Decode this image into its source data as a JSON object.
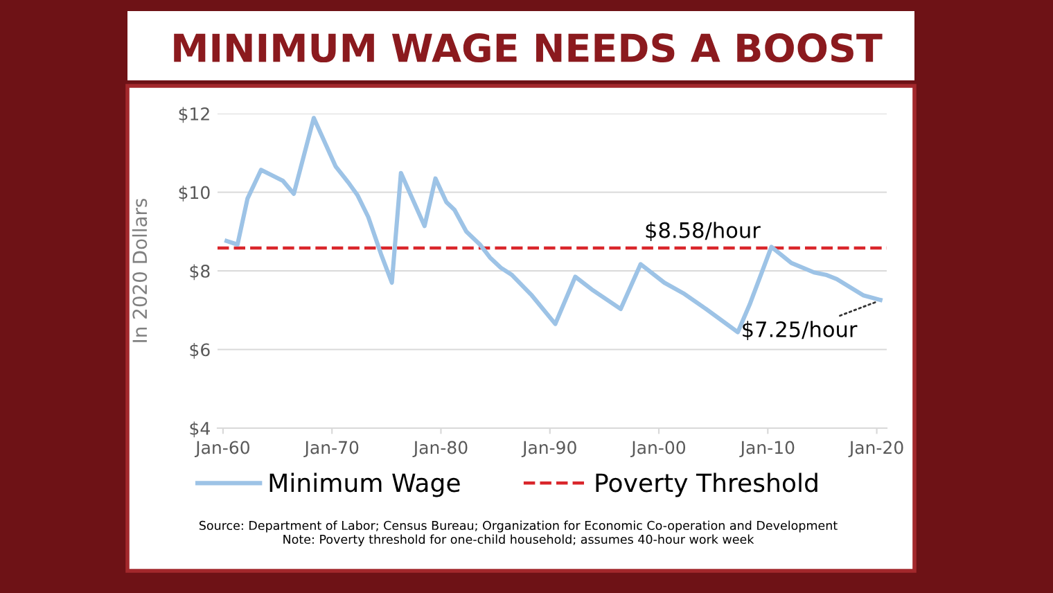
{
  "chart_data": {
    "type": "line",
    "title": "MINIMUM WAGE NEEDS A BOOST",
    "ylabel": "In 2020 Dollars",
    "series": [
      {
        "name": "Minimum Wage",
        "color": "#9dc3e6",
        "x": [
          "1960-05",
          "1961-05",
          "1962-04",
          "1963-07",
          "1965-07",
          "1966-07",
          "1968-05",
          "1970-05",
          "1971-07",
          "1972-05",
          "1973-05",
          "1974-07",
          "1975-07",
          "1976-05",
          "1978-07",
          "1979-07",
          "1980-07",
          "1981-04",
          "1982-05",
          "1983-08",
          "1984-07",
          "1985-07",
          "1986-07",
          "1988-05",
          "1990-07",
          "1992-05",
          "1993-11",
          "1996-07",
          "1998-05",
          "2000-07",
          "2002-04",
          "2004-05",
          "2007-04",
          "2008-05",
          "2010-05",
          "2012-03",
          "2014-04",
          "2015-05",
          "2016-05",
          "2018-10",
          "2020-05"
        ],
        "values": [
          8.76,
          8.67,
          9.84,
          10.57,
          10.29,
          9.96,
          11.89,
          10.66,
          10.25,
          9.93,
          9.37,
          8.43,
          7.7,
          10.49,
          9.14,
          10.35,
          9.75,
          9.55,
          9.0,
          8.67,
          8.34,
          8.08,
          7.9,
          7.38,
          6.65,
          7.85,
          7.53,
          7.03,
          8.17,
          7.7,
          7.43,
          7.03,
          6.44,
          7.14,
          8.61,
          8.2,
          7.96,
          7.9,
          7.79,
          7.38,
          7.26
        ]
      }
    ],
    "ref_lines": [
      {
        "axis": "y",
        "value": 8.58,
        "label": "Poverty Threshold",
        "color": "#d9262b",
        "line_style": "dashed"
      }
    ],
    "annotations": [
      {
        "text": "$8.58/hour",
        "x": "2004-01",
        "y": 8.58
      },
      {
        "text": "$7.25/hour",
        "x": "2020-05",
        "y": 7.25
      },
      "Source: Department of Labor; Census Bureau; Organization for Economic Co-operation and Development",
      "Note: Poverty threshold for one-child household; assumes 40-hour work week"
    ],
    "xlim": [
      "1959-07",
      "2020-12"
    ],
    "xticks": [
      {
        "value": "1960-01",
        "label": "Jan-60"
      },
      {
        "value": "1970-01",
        "label": "Jan-70"
      },
      {
        "value": "1980-01",
        "label": "Jan-80"
      },
      {
        "value": "1990-01",
        "label": "Jan-90"
      },
      {
        "value": "2000-01",
        "label": "Jan-00"
      },
      {
        "value": "2010-01",
        "label": "Jan-10"
      },
      {
        "value": "2020-01",
        "label": "Jan-20"
      }
    ],
    "ylim": [
      4,
      12
    ],
    "yticks": [
      {
        "value": 4,
        "label": "$4"
      },
      {
        "value": 6,
        "label": "$6"
      },
      {
        "value": 8,
        "label": "$8"
      },
      {
        "value": 10,
        "label": "$10"
      },
      {
        "value": 12,
        "label": "$12"
      }
    ],
    "grid": "y",
    "legend": "bottom",
    "marker": "none",
    "line_style": "solid"
  }
}
